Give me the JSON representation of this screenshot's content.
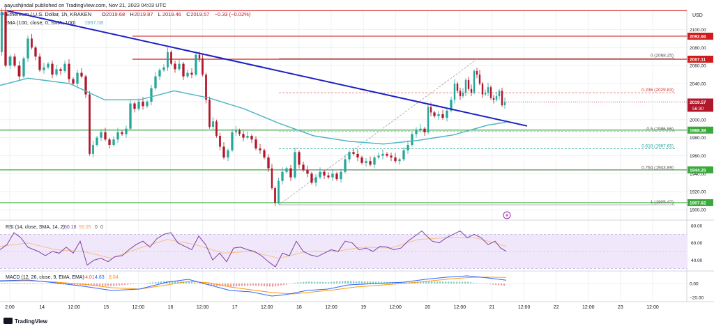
{
  "header": {
    "published_line": "aayushjindal published on TradingView.com, Nov 21, 2023 04:03 UTC",
    "symbol_line": "Ethereum / U.S. Dollar, 1h, KRAKEN",
    "ohlc": [
      {
        "key": "O",
        "value": "2019.68"
      },
      {
        "key": "H",
        "value": "2019.87"
      },
      {
        "key": "L",
        "value": "2019.46"
      },
      {
        "key": "C",
        "value": "2019.57"
      },
      {
        "key": "",
        "value": "−0.33 (−0.02%)"
      }
    ],
    "ema_label": "EMA (100, close, 0, SMA, 100)",
    "ema_value": "1997.08"
  },
  "footer": {
    "brand": "TradingView"
  },
  "colors": {
    "up": "#26a69a",
    "down": "#b2162a",
    "ema": "#4fb6c4",
    "trend": "#1c1fc4",
    "support": "#3aa83a",
    "resistance": "#d21b1b",
    "rsi": "#7e3fa0",
    "macd": "#2962ff",
    "signal": "#ff9800",
    "bg_rsi": "#f0e8fa"
  },
  "chart_data": [
    {
      "type": "candlestick",
      "title": "Ethereum / U.S. Dollar, 1h, KRAKEN",
      "currency": "USD",
      "y_ticks": [
        1900,
        1920,
        1940,
        1960,
        1980,
        2000,
        2020,
        2040,
        2060,
        2080,
        2100
      ],
      "ylim": [
        1890,
        2122
      ],
      "x_ticks": [
        "2:00",
        "14",
        "12:00",
        "15",
        "12:00",
        "16",
        "12:00",
        "17",
        "12:00",
        "18",
        "12:00",
        "19",
        "12:00",
        "20",
        "12:00",
        "21",
        "12:00",
        "22",
        "12:00",
        "23",
        "12:00"
      ],
      "price_path": [
        [
          0,
          2075
        ],
        [
          5,
          2120
        ],
        [
          11,
          2060
        ],
        [
          18,
          2070
        ],
        [
          24,
          2060
        ],
        [
          31,
          2048
        ],
        [
          37,
          2068
        ],
        [
          43,
          2090
        ],
        [
          48,
          2080
        ],
        [
          54,
          2070
        ],
        [
          60,
          2055
        ],
        [
          66,
          2058
        ],
        [
          72,
          2062
        ],
        [
          78,
          2050
        ],
        [
          84,
          2056
        ],
        [
          90,
          2054
        ],
        [
          96,
          2062
        ],
        [
          102,
          2045
        ],
        [
          108,
          2040
        ],
        [
          114,
          2052
        ],
        [
          120,
          2048
        ],
        [
          126,
          2028
        ],
        [
          131,
          1962
        ],
        [
          136,
          1972
        ],
        [
          142,
          1980
        ],
        [
          148,
          1986
        ],
        [
          154,
          1978
        ],
        [
          160,
          1972
        ],
        [
          166,
          1978
        ],
        [
          172,
          1986
        ],
        [
          178,
          1984
        ],
        [
          184,
          1990
        ],
        [
          190,
          2018
        ],
        [
          196,
          2012
        ],
        [
          202,
          2020
        ],
        [
          208,
          2015
        ],
        [
          214,
          2020
        ],
        [
          220,
          2035
        ],
        [
          226,
          2048
        ],
        [
          232,
          2055
        ],
        [
          238,
          2058
        ],
        [
          243,
          2075
        ],
        [
          248,
          2062
        ],
        [
          254,
          2056
        ],
        [
          260,
          2062
        ],
        [
          266,
          2048
        ],
        [
          272,
          2052
        ],
        [
          278,
          2050
        ],
        [
          284,
          2072
        ],
        [
          288,
          2068
        ],
        [
          293,
          2050
        ],
        [
          298,
          2022
        ],
        [
          303,
          1992
        ],
        [
          308,
          1998
        ],
        [
          313,
          1982
        ],
        [
          318,
          1970
        ],
        [
          324,
          1958
        ],
        [
          330,
          1966
        ],
        [
          336,
          1986
        ],
        [
          341,
          1988
        ],
        [
          346,
          1984
        ],
        [
          352,
          1980
        ],
        [
          358,
          1982
        ],
        [
          364,
          1978
        ],
        [
          370,
          1968
        ],
        [
          376,
          1966
        ],
        [
          382,
          1958
        ],
        [
          388,
          1946
        ],
        [
          392,
          1924
        ],
        [
          397,
          1908
        ],
        [
          402,
          1932
        ],
        [
          408,
          1942
        ],
        [
          414,
          1946
        ],
        [
          420,
          1936
        ],
        [
          426,
          1964
        ],
        [
          432,
          1950
        ],
        [
          438,
          1944
        ],
        [
          444,
          1940
        ],
        [
          450,
          1930
        ],
        [
          456,
          1936
        ],
        [
          462,
          1942
        ],
        [
          468,
          1938
        ],
        [
          474,
          1936
        ],
        [
          480,
          1940
        ],
        [
          486,
          1934
        ],
        [
          492,
          1942
        ],
        [
          498,
          1956
        ],
        [
          504,
          1964
        ],
        [
          510,
          1962
        ],
        [
          516,
          1958
        ],
        [
          522,
          1952
        ],
        [
          528,
          1954
        ],
        [
          534,
          1950
        ],
        [
          540,
          1958
        ],
        [
          546,
          1960
        ],
        [
          552,
          1962
        ],
        [
          558,
          1960
        ],
        [
          564,
          1958
        ],
        [
          570,
          1954
        ],
        [
          576,
          1956
        ],
        [
          582,
          1966
        ],
        [
          588,
          1972
        ],
        [
          594,
          1984
        ],
        [
          600,
          1988
        ],
        [
          606,
          1990
        ],
        [
          612,
          1986
        ],
        [
          616,
          2014
        ],
        [
          620,
          2008
        ],
        [
          626,
          2004
        ],
        [
          632,
          2006
        ],
        [
          638,
          2002
        ],
        [
          644,
          2010
        ],
        [
          650,
          2022
        ],
        [
          654,
          2040
        ],
        [
          658,
          2032
        ],
        [
          662,
          2026
        ],
        [
          666,
          2030
        ],
        [
          670,
          2044
        ],
        [
          674,
          2034
        ],
        [
          678,
          2030
        ],
        [
          682,
          2054
        ],
        [
          686,
          2050
        ],
        [
          690,
          2040
        ],
        [
          694,
          2028
        ],
        [
          698,
          2030
        ],
        [
          702,
          2036
        ],
        [
          706,
          2024
        ],
        [
          710,
          2022
        ],
        [
          714,
          2026
        ],
        [
          718,
          2032
        ],
        [
          722,
          2016
        ],
        [
          726,
          2019.57
        ]
      ],
      "ema_path": [
        [
          0,
          2038
        ],
        [
          40,
          2046
        ],
        [
          100,
          2040
        ],
        [
          150,
          2022
        ],
        [
          200,
          2022
        ],
        [
          250,
          2032
        ],
        [
          300,
          2024
        ],
        [
          350,
          2012
        ],
        [
          400,
          1996
        ],
        [
          450,
          1982
        ],
        [
          500,
          1976
        ],
        [
          550,
          1973
        ],
        [
          600,
          1977
        ],
        [
          650,
          1983
        ],
        [
          700,
          1994
        ],
        [
          726,
          1997.08
        ]
      ],
      "trendline": {
        "from": [
          10,
          2121
        ],
        "to": [
          756,
          1993
        ]
      },
      "resistance_levels": [
        {
          "price": 2121,
          "label": ""
        },
        {
          "price": 2092.66,
          "label": "2092.66"
        },
        {
          "price": 2067.11,
          "label": "2067.11"
        }
      ],
      "support_levels": [
        {
          "price": 1988.38,
          "label": "1988.38"
        },
        {
          "price": 1944.25,
          "label": "1944.25"
        },
        {
          "price": 1907.82,
          "label": "1907.82"
        }
      ],
      "current_price": {
        "price": 2019.57,
        "label": "2019.57",
        "countdown": "56:30"
      },
      "fibonacci": {
        "swing_low_x": 400,
        "swing_high_x": 686,
        "x_end": 968,
        "levels": [
          {
            "ratio": "0",
            "price": 2068.25,
            "label": "0 (2068.25)"
          },
          {
            "ratio": "0.236",
            "price": 2029.83,
            "label": "0.236 (2029.83)"
          },
          {
            "ratio": "0.5",
            "price": 1986.86,
            "label": "0.5 (1986.86)"
          },
          {
            "ratio": "0.618",
            "price": 1967.65,
            "label": "0.618 (1967.65)"
          },
          {
            "ratio": "0.764",
            "price": 1943.89,
            "label": "0.764 (1943.89)"
          },
          {
            "ratio": "1",
            "price": 1905.47,
            "label": "1 (1905.47)"
          }
        ]
      }
    },
    {
      "type": "line",
      "title": "RSI (14, close, SMA, 14, 2)",
      "rsi_value": "50.18",
      "rsi_ma_value": "56.05",
      "extra_values": [
        "0",
        "0"
      ],
      "y_ticks": [
        40,
        60,
        80
      ],
      "ylim": [
        28,
        85
      ],
      "band": [
        30,
        70
      ],
      "rsi_path": [
        [
          0,
          52
        ],
        [
          10,
          58
        ],
        [
          20,
          72
        ],
        [
          30,
          66
        ],
        [
          40,
          55
        ],
        [
          55,
          50
        ],
        [
          65,
          45
        ],
        [
          75,
          50
        ],
        [
          85,
          48
        ],
        [
          95,
          55
        ],
        [
          105,
          48
        ],
        [
          115,
          62
        ],
        [
          125,
          34
        ],
        [
          135,
          40
        ],
        [
          145,
          42
        ],
        [
          155,
          38
        ],
        [
          165,
          44
        ],
        [
          175,
          45
        ],
        [
          185,
          52
        ],
        [
          195,
          58
        ],
        [
          205,
          62
        ],
        [
          215,
          55
        ],
        [
          225,
          65
        ],
        [
          235,
          70
        ],
        [
          245,
          72
        ],
        [
          255,
          60
        ],
        [
          265,
          56
        ],
        [
          275,
          52
        ],
        [
          285,
          68
        ],
        [
          295,
          58
        ],
        [
          305,
          40
        ],
        [
          315,
          48
        ],
        [
          325,
          38
        ],
        [
          335,
          54
        ],
        [
          345,
          55
        ],
        [
          355,
          52
        ],
        [
          365,
          50
        ],
        [
          375,
          45
        ],
        [
          385,
          38
        ],
        [
          395,
          32
        ],
        [
          405,
          48
        ],
        [
          415,
          45
        ],
        [
          425,
          62
        ],
        [
          435,
          50
        ],
        [
          445,
          46
        ],
        [
          455,
          44
        ],
        [
          465,
          48
        ],
        [
          475,
          52
        ],
        [
          485,
          50
        ],
        [
          495,
          62
        ],
        [
          505,
          60
        ],
        [
          515,
          52
        ],
        [
          525,
          54
        ],
        [
          535,
          50
        ],
        [
          545,
          56
        ],
        [
          555,
          55
        ],
        [
          565,
          52
        ],
        [
          575,
          54
        ],
        [
          585,
          62
        ],
        [
          595,
          68
        ],
        [
          605,
          74
        ],
        [
          612,
          68
        ],
        [
          620,
          62
        ],
        [
          630,
          60
        ],
        [
          640,
          66
        ],
        [
          650,
          70
        ],
        [
          660,
          74
        ],
        [
          670,
          66
        ],
        [
          680,
          70
        ],
        [
          690,
          66
        ],
        [
          700,
          58
        ],
        [
          710,
          62
        ],
        [
          718,
          54
        ],
        [
          726,
          50.18
        ]
      ],
      "rsi_ma_path": [
        [
          0,
          56
        ],
        [
          40,
          60
        ],
        [
          80,
          52
        ],
        [
          120,
          50
        ],
        [
          160,
          42
        ],
        [
          200,
          54
        ],
        [
          240,
          64
        ],
        [
          280,
          58
        ],
        [
          320,
          48
        ],
        [
          360,
          50
        ],
        [
          400,
          42
        ],
        [
          440,
          50
        ],
        [
          480,
          50
        ],
        [
          520,
          55
        ],
        [
          560,
          54
        ],
        [
          600,
          64
        ],
        [
          640,
          66
        ],
        [
          680,
          66
        ],
        [
          710,
          60
        ],
        [
          726,
          56.05
        ]
      ]
    },
    {
      "type": "histogram",
      "title": "MACD (12, 26, close, 9, EMA, EMA)",
      "values_shown": [
        "−4.01",
        "4.83",
        "8.84"
      ],
      "y_ticks": [
        0,
        -20
      ],
      "y_tick_labels": [
        "0.00",
        "−20.00"
      ],
      "ylim": [
        -26,
        16
      ],
      "macd_path": [
        [
          0,
          4
        ],
        [
          40,
          5
        ],
        [
          80,
          1
        ],
        [
          120,
          -4
        ],
        [
          160,
          -10
        ],
        [
          200,
          -8
        ],
        [
          240,
          2
        ],
        [
          270,
          6
        ],
        [
          300,
          -2
        ],
        [
          330,
          -10
        ],
        [
          360,
          -12
        ],
        [
          390,
          -18
        ],
        [
          410,
          -16
        ],
        [
          440,
          -10
        ],
        [
          470,
          -8
        ],
        [
          500,
          -2
        ],
        [
          540,
          0
        ],
        [
          580,
          2
        ],
        [
          610,
          6
        ],
        [
          640,
          9
        ],
        [
          670,
          11
        ],
        [
          700,
          8
        ],
        [
          726,
          4.83
        ]
      ],
      "signal_path": [
        [
          0,
          3
        ],
        [
          40,
          4
        ],
        [
          80,
          2
        ],
        [
          120,
          -1
        ],
        [
          160,
          -6
        ],
        [
          200,
          -8
        ],
        [
          240,
          -2
        ],
        [
          270,
          3
        ],
        [
          300,
          1
        ],
        [
          330,
          -5
        ],
        [
          360,
          -9
        ],
        [
          390,
          -13
        ],
        [
          420,
          -15
        ],
        [
          450,
          -12
        ],
        [
          480,
          -9
        ],
        [
          510,
          -5
        ],
        [
          550,
          -2
        ],
        [
          590,
          1
        ],
        [
          620,
          4
        ],
        [
          650,
          7
        ],
        [
          680,
          9
        ],
        [
          710,
          9
        ],
        [
          726,
          8.84
        ]
      ]
    }
  ]
}
